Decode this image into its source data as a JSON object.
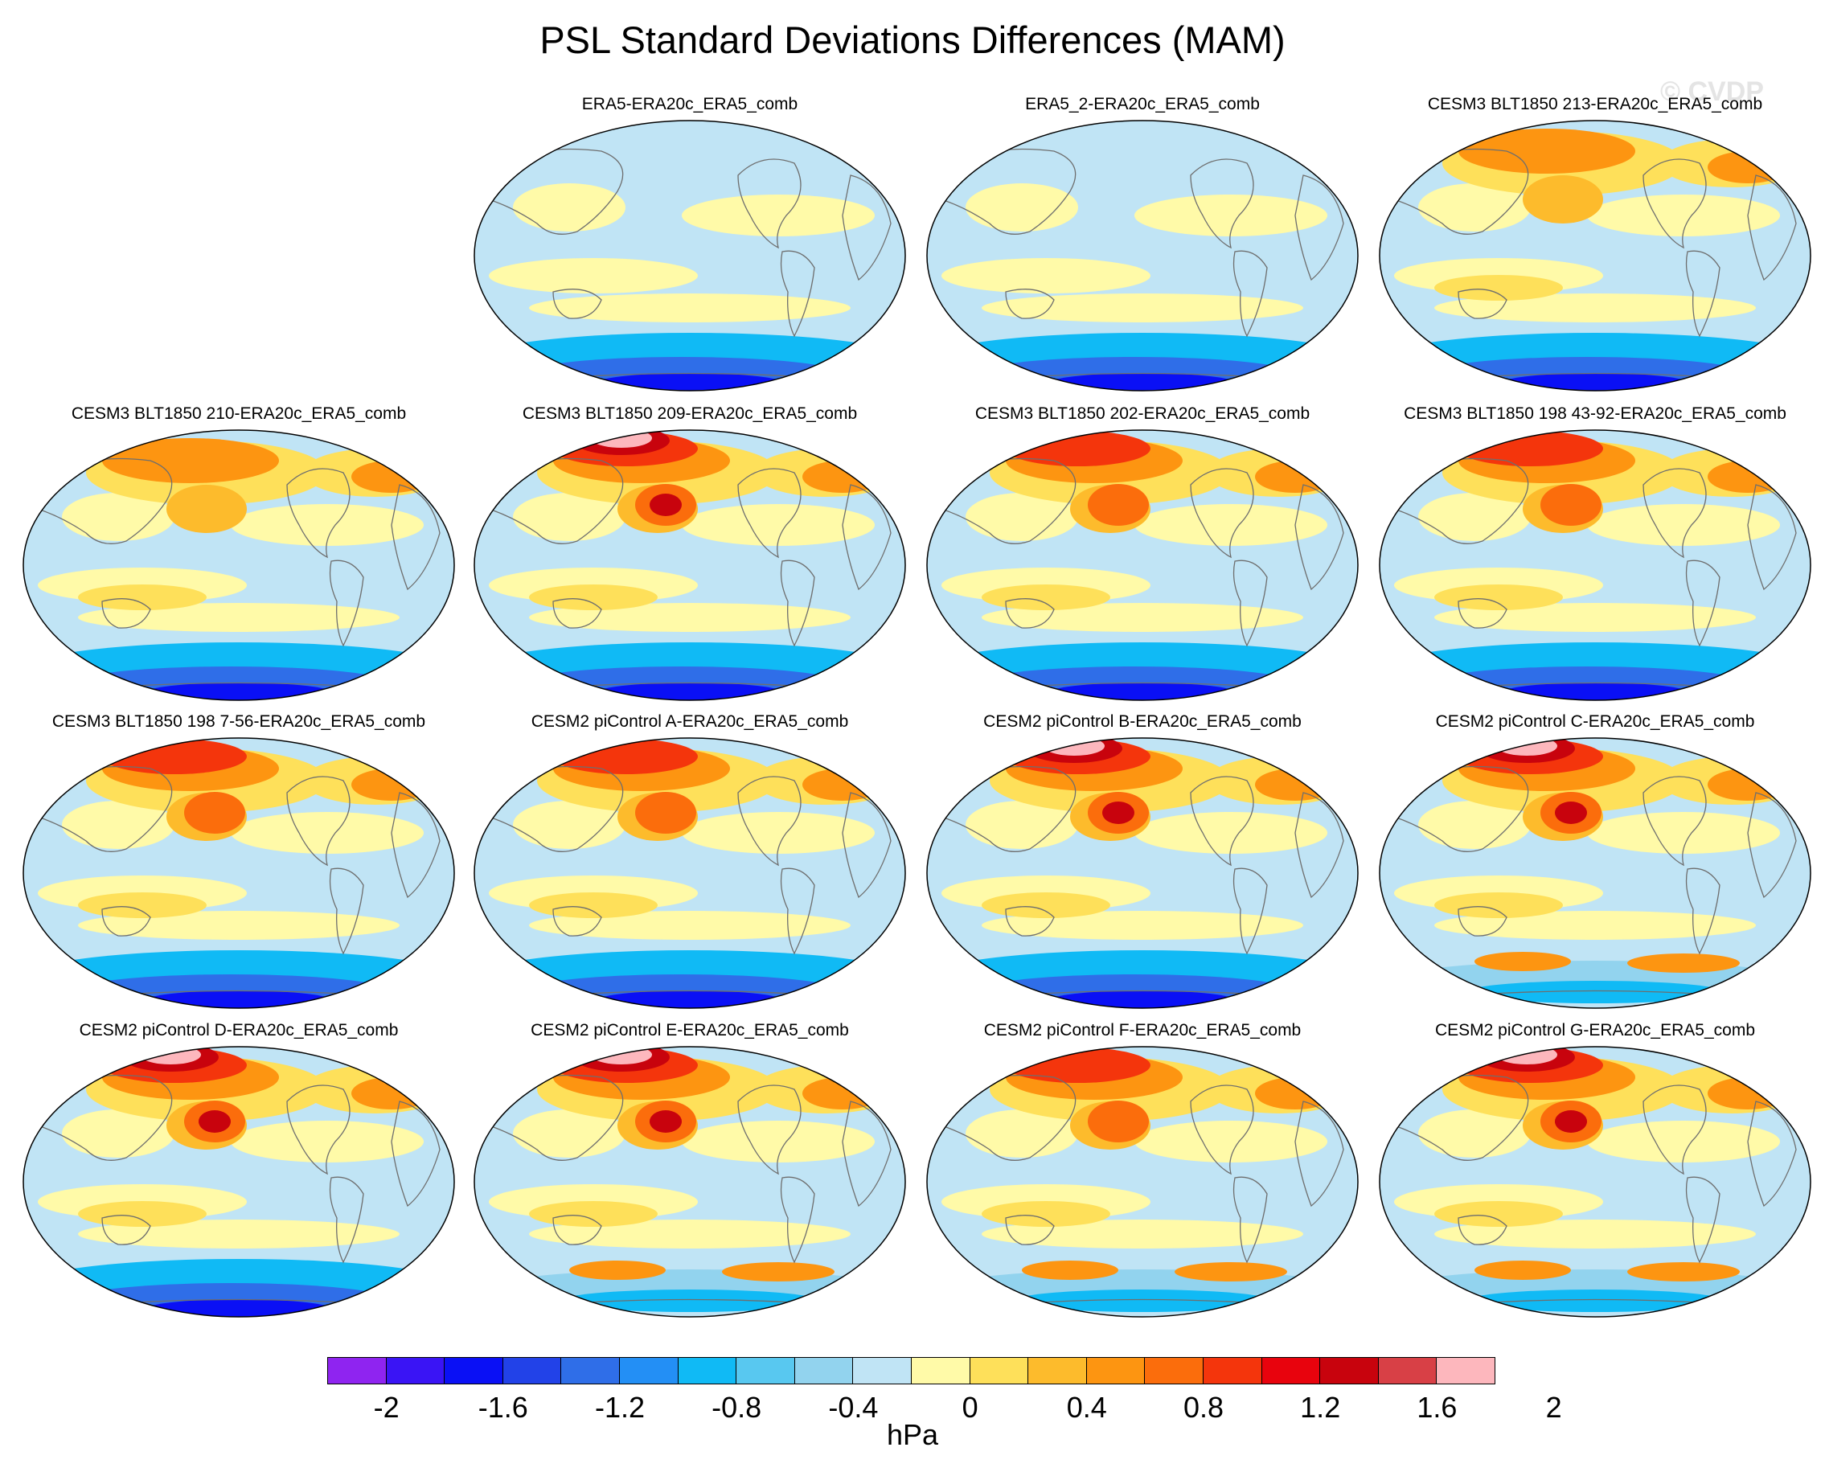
{
  "title": "PSL Standard Deviations Differences (MAM)",
  "watermark": "© CVDP",
  "colorbar": {
    "unit": "hPa",
    "tick_labels": [
      "-2",
      "-1.6",
      "-1.2",
      "-0.8",
      "-0.4",
      "0",
      "0.4",
      "0.8",
      "1.2",
      "1.6",
      "2"
    ],
    "colors": [
      "#8f24f0",
      "#3a14f5",
      "#0a10f5",
      "#2242e8",
      "#2f6ee8",
      "#238ff5",
      "#10baf5",
      "#58c8f0",
      "#92d3ee",
      "#c0e4f5",
      "#fffaa8",
      "#fee05a",
      "#fdbb2c",
      "#fd9511",
      "#fb6d0c",
      "#f4350c",
      "#e8030d",
      "#c8030d",
      "#d84046",
      "#fdb7bd"
    ]
  },
  "panels": [
    {
      "title": "ERA5-ERA20c_ERA5_comb",
      "warm": 0.15,
      "cold": 0.85
    },
    {
      "title": "ERA5_2-ERA20c_ERA5_comb",
      "warm": 0.15,
      "cold": 0.8
    },
    {
      "title": "CESM3 BLT1850 213-ERA20c_ERA5_comb",
      "warm": 0.55,
      "cold": 0.8
    },
    {
      "title": "CESM3 BLT1850 210-ERA20c_ERA5_comb",
      "warm": 0.65,
      "cold": 0.75
    },
    {
      "title": "CESM3 BLT1850 209-ERA20c_ERA5_comb",
      "warm": 0.95,
      "cold": 0.65
    },
    {
      "title": "CESM3 BLT1850 202-ERA20c_ERA5_comb",
      "warm": 0.85,
      "cold": 0.7
    },
    {
      "title": "CESM3 BLT1850 198 43-92-ERA20c_ERA5_comb",
      "warm": 0.75,
      "cold": 0.65
    },
    {
      "title": "CESM3 BLT1850 198 7-56-ERA20c_ERA5_comb",
      "warm": 0.75,
      "cold": 0.6
    },
    {
      "title": "CESM2 piControl A-ERA20c_ERA5_comb",
      "warm": 0.85,
      "cold": 0.65
    },
    {
      "title": "CESM2 piControl B-ERA20c_ERA5_comb",
      "warm": 0.9,
      "cold": 0.7
    },
    {
      "title": "CESM2 piControl C-ERA20c_ERA5_comb",
      "warm": 1.0,
      "cold": 0.35
    },
    {
      "title": "CESM2 piControl D-ERA20c_ERA5_comb",
      "warm": 0.95,
      "cold": 0.8
    },
    {
      "title": "CESM2 piControl E-ERA20c_ERA5_comb",
      "warm": 0.95,
      "cold": 0.45
    },
    {
      "title": "CESM2 piControl F-ERA20c_ERA5_comb",
      "warm": 0.85,
      "cold": 0.4
    },
    {
      "title": "CESM2 piControl G-ERA20c_ERA5_comb",
      "warm": 0.95,
      "cold": 0.5
    }
  ]
}
